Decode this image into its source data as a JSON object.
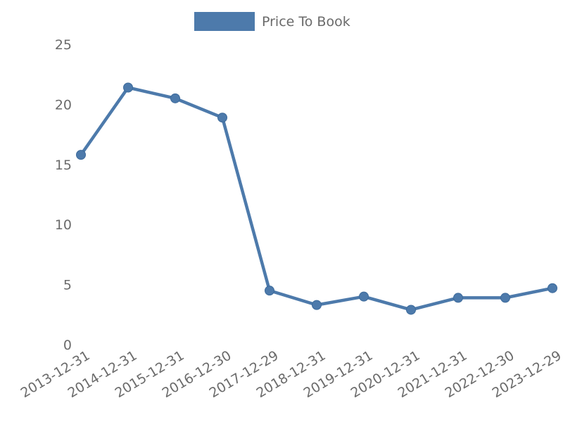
{
  "chart_data": {
    "type": "line",
    "title": "",
    "xlabel": "",
    "ylabel": "",
    "grid": false,
    "legend_position": "top-center",
    "legend": [
      {
        "name": "Price To Book",
        "color": "#4d7aab"
      }
    ],
    "categories": [
      "2013-12-31",
      "2014-12-31",
      "2015-12-31",
      "2016-12-30",
      "2017-12-29",
      "2018-12-31",
      "2019-12-31",
      "2020-12-31",
      "2021-12-31",
      "2022-12-30",
      "2023-12-29"
    ],
    "series": [
      {
        "name": "Price To Book",
        "values": [
          15.8,
          21.4,
          20.5,
          18.9,
          4.5,
          3.3,
          4.0,
          2.9,
          3.9,
          3.9,
          4.7
        ]
      }
    ],
    "yticks": [
      0,
      5,
      10,
      15,
      20,
      25
    ],
    "ylim": [
      0,
      25
    ],
    "line_color": "#4d7aab",
    "marker_edge_color": "#3c6a9b",
    "tick_color": "#6b6b6b"
  }
}
